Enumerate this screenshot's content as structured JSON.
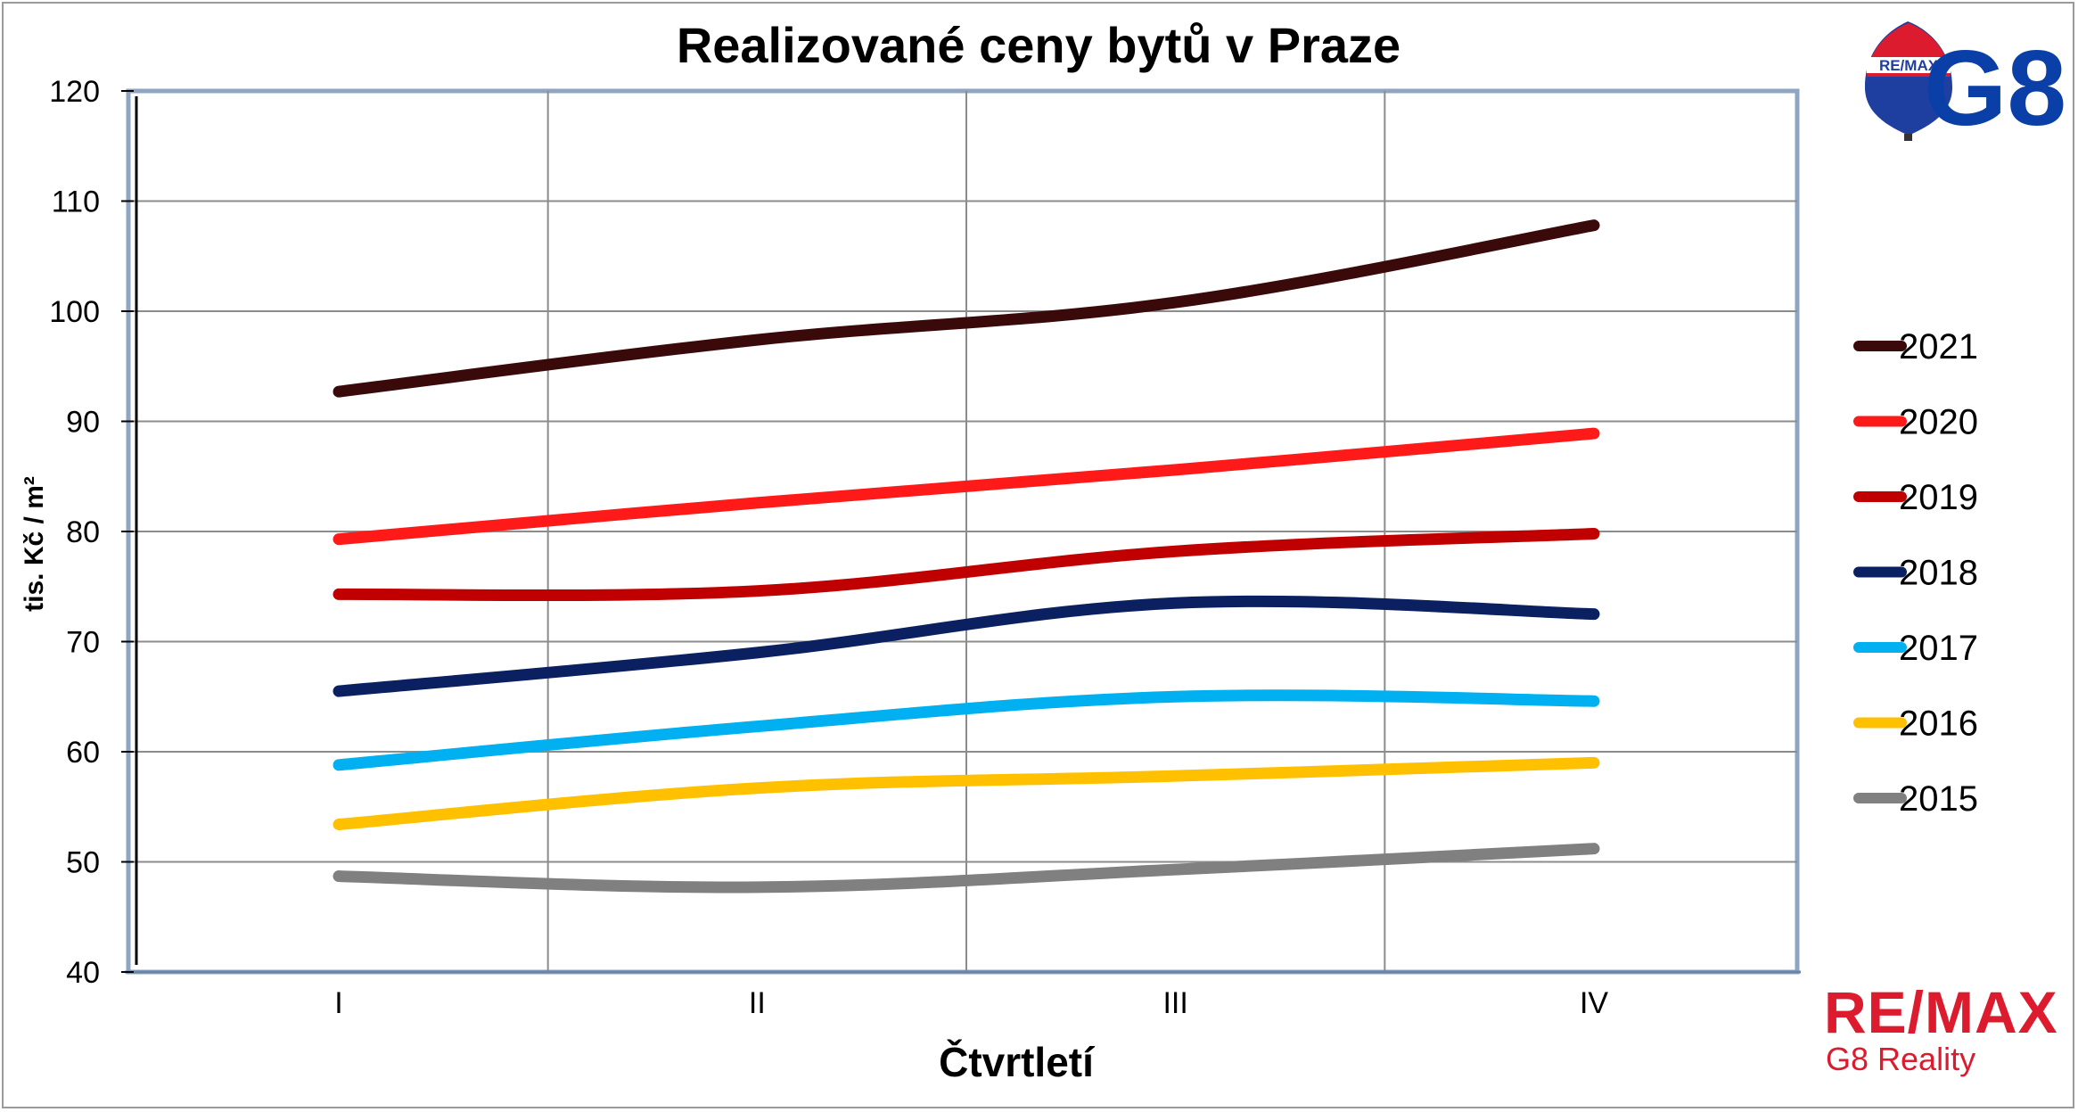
{
  "chart_data": {
    "type": "line",
    "title": "Realizované ceny bytů v Praze",
    "xlabel": "Čtvrtletí",
    "ylabel": "tis. Kč / m²",
    "categories": [
      "I",
      "II",
      "III",
      "IV"
    ],
    "ylim": [
      40,
      120
    ],
    "yticks": [
      40,
      50,
      60,
      70,
      80,
      90,
      100,
      110,
      120
    ],
    "grid": true,
    "legend_position": "right",
    "series": [
      {
        "name": "2021",
        "color": "#3a0a0a",
        "values": [
          92.7,
          97.4,
          100.8,
          107.8
        ]
      },
      {
        "name": "2020",
        "color": "#ff1a1a",
        "values": [
          79.3,
          82.6,
          85.6,
          88.9
        ]
      },
      {
        "name": "2019",
        "color": "#c00000",
        "values": [
          74.3,
          74.6,
          78.2,
          79.8
        ]
      },
      {
        "name": "2018",
        "color": "#0a2060",
        "values": [
          65.5,
          69.0,
          73.5,
          72.5
        ]
      },
      {
        "name": "2017",
        "color": "#00b0f0",
        "values": [
          58.8,
          62.3,
          65.0,
          64.6
        ]
      },
      {
        "name": "2016",
        "color": "#ffc000",
        "values": [
          53.4,
          56.7,
          57.8,
          59.0
        ]
      },
      {
        "name": "2015",
        "color": "#808080",
        "values": [
          48.7,
          47.7,
          49.3,
          51.2
        ]
      }
    ]
  },
  "logos": {
    "g8_text": "G8",
    "balloon_text": "RE/MAX",
    "remax_text": "RE/MAX",
    "remax_sub": "G8 Reality"
  }
}
